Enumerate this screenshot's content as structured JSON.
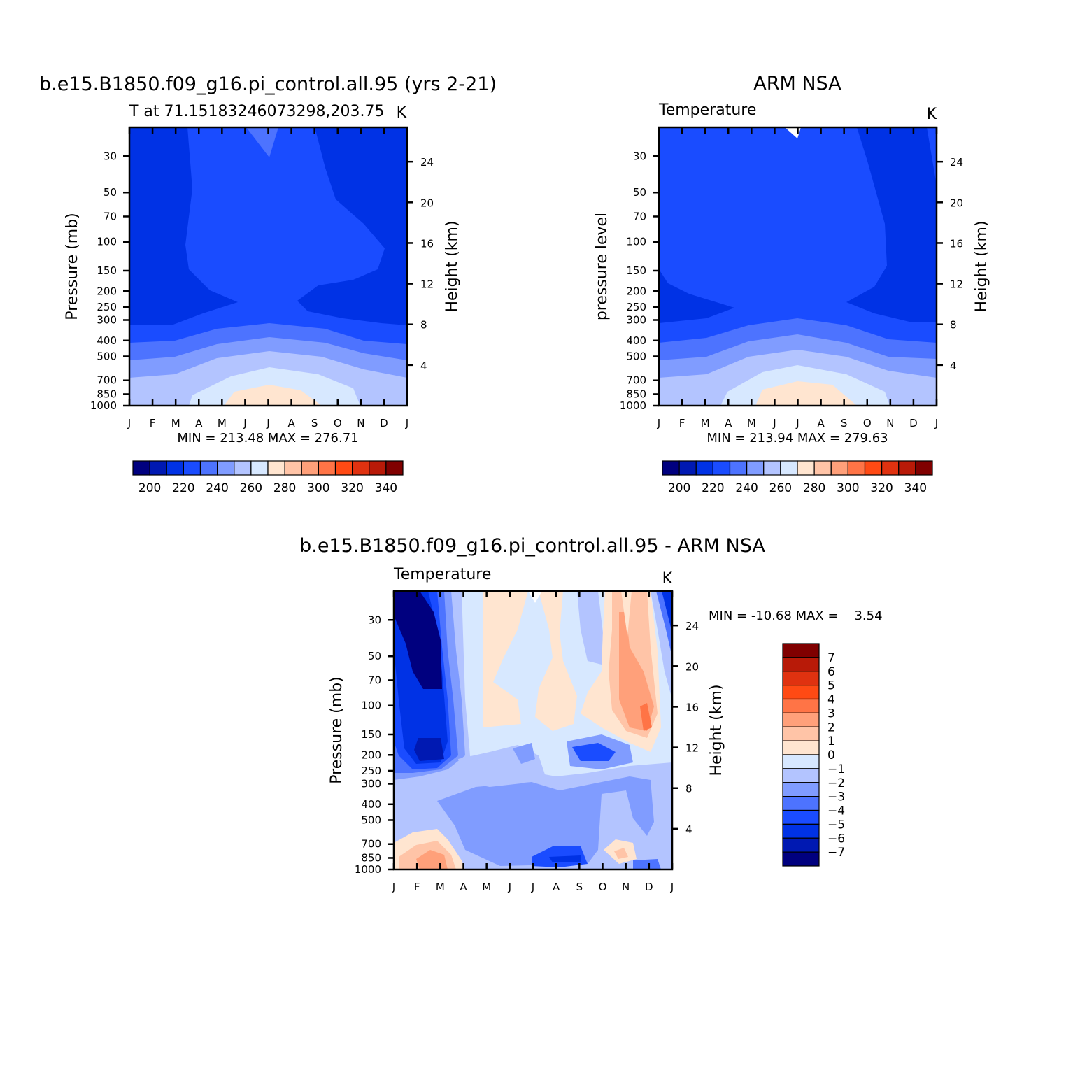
{
  "chart_data": [
    {
      "type": "heatmap",
      "title": "b.e15.B1850.f09_g16.pi_control.all.95 (yrs 2-21)",
      "subtitle_left": "T at 71.15183246073298,203.75",
      "subtitle_right": "K",
      "ylabel": "Pressure (mb)",
      "ylabel_right": "Height (km)",
      "x_ticks": [
        "J",
        "F",
        "M",
        "A",
        "M",
        "J",
        "J",
        "A",
        "S",
        "O",
        "N",
        "D",
        "J"
      ],
      "y_ticks": [
        "30",
        "50",
        "70",
        "100",
        "150",
        "200",
        "250",
        "300",
        "400",
        "500",
        "700",
        "850",
        "1000"
      ],
      "y_ticks_right": [
        "24",
        "20",
        "16",
        "12",
        "8",
        "4"
      ],
      "min_label": "MIN = 213.48 MAX = 276.71",
      "colorbar": {
        "labels": [
          "200",
          "220",
          "240",
          "260",
          "280",
          "300",
          "320",
          "340"
        ],
        "colors": [
          "#00007f",
          "#0019b2",
          "#0032e5",
          "#1a4cff",
          "#4d73ff",
          "#809cff",
          "#b3c4ff",
          "#d7e8ff",
          "#ffe5d0",
          "#ffc4a7",
          "#ffa07a",
          "#ff7446",
          "#ff4a14",
          "#e03210",
          "#b81a08",
          "#800000"
        ]
      },
      "ylim": [
        1000,
        20
      ],
      "grid": false
    },
    {
      "type": "heatmap",
      "title": "ARM NSA",
      "subtitle_left": "Temperature",
      "subtitle_right": "K",
      "ylabel": "pressure level",
      "ylabel_right": "Height (km)",
      "x_ticks": [
        "J",
        "F",
        "M",
        "A",
        "M",
        "J",
        "J",
        "A",
        "S",
        "O",
        "N",
        "D",
        "J"
      ],
      "y_ticks": [
        "30",
        "50",
        "70",
        "100",
        "150",
        "200",
        "250",
        "300",
        "400",
        "500",
        "700",
        "850",
        "1000"
      ],
      "y_ticks_right": [
        "24",
        "20",
        "16",
        "12",
        "8",
        "4"
      ],
      "min_label": "MIN = 213.94 MAX = 279.63",
      "colorbar": {
        "labels": [
          "200",
          "220",
          "240",
          "260",
          "280",
          "300",
          "320",
          "340"
        ],
        "colors": [
          "#00007f",
          "#0019b2",
          "#0032e5",
          "#1a4cff",
          "#4d73ff",
          "#809cff",
          "#b3c4ff",
          "#d7e8ff",
          "#ffe5d0",
          "#ffc4a7",
          "#ffa07a",
          "#ff7446",
          "#ff4a14",
          "#e03210",
          "#b81a08",
          "#800000"
        ]
      },
      "ylim": [
        1000,
        20
      ],
      "grid": false
    },
    {
      "type": "heatmap",
      "title": "b.e15.B1850.f09_g16.pi_control.all.95 - ARM NSA",
      "subtitle_left": "Temperature",
      "subtitle_right": "K",
      "ylabel": "Pressure (mb)",
      "ylabel_right": "Height (km)",
      "x_ticks": [
        "J",
        "F",
        "M",
        "A",
        "M",
        "J",
        "J",
        "A",
        "S",
        "O",
        "N",
        "D",
        "J"
      ],
      "y_ticks": [
        "30",
        "50",
        "70",
        "100",
        "150",
        "200",
        "250",
        "300",
        "400",
        "500",
        "700",
        "850",
        "1000"
      ],
      "y_ticks_right": [
        "24",
        "20",
        "16",
        "12",
        "8",
        "4"
      ],
      "min_label": "MIN = -10.68 MAX =    3.54",
      "colorbar": {
        "labels": [
          "7",
          "6",
          "5",
          "4",
          "3",
          "2",
          "1",
          "0",
          "-1",
          "-2",
          "-3",
          "-4",
          "-5",
          "-6",
          "-7"
        ],
        "colors": [
          "#800000",
          "#b81a08",
          "#e03210",
          "#ff4a14",
          "#ff7446",
          "#ffa07a",
          "#ffc4a7",
          "#ffe5d0",
          "#d7e8ff",
          "#b3c4ff",
          "#809cff",
          "#4d73ff",
          "#1a4cff",
          "#0032e5",
          "#0019b2",
          "#00007f"
        ]
      },
      "ylim": [
        1000,
        20
      ],
      "grid": false
    }
  ]
}
